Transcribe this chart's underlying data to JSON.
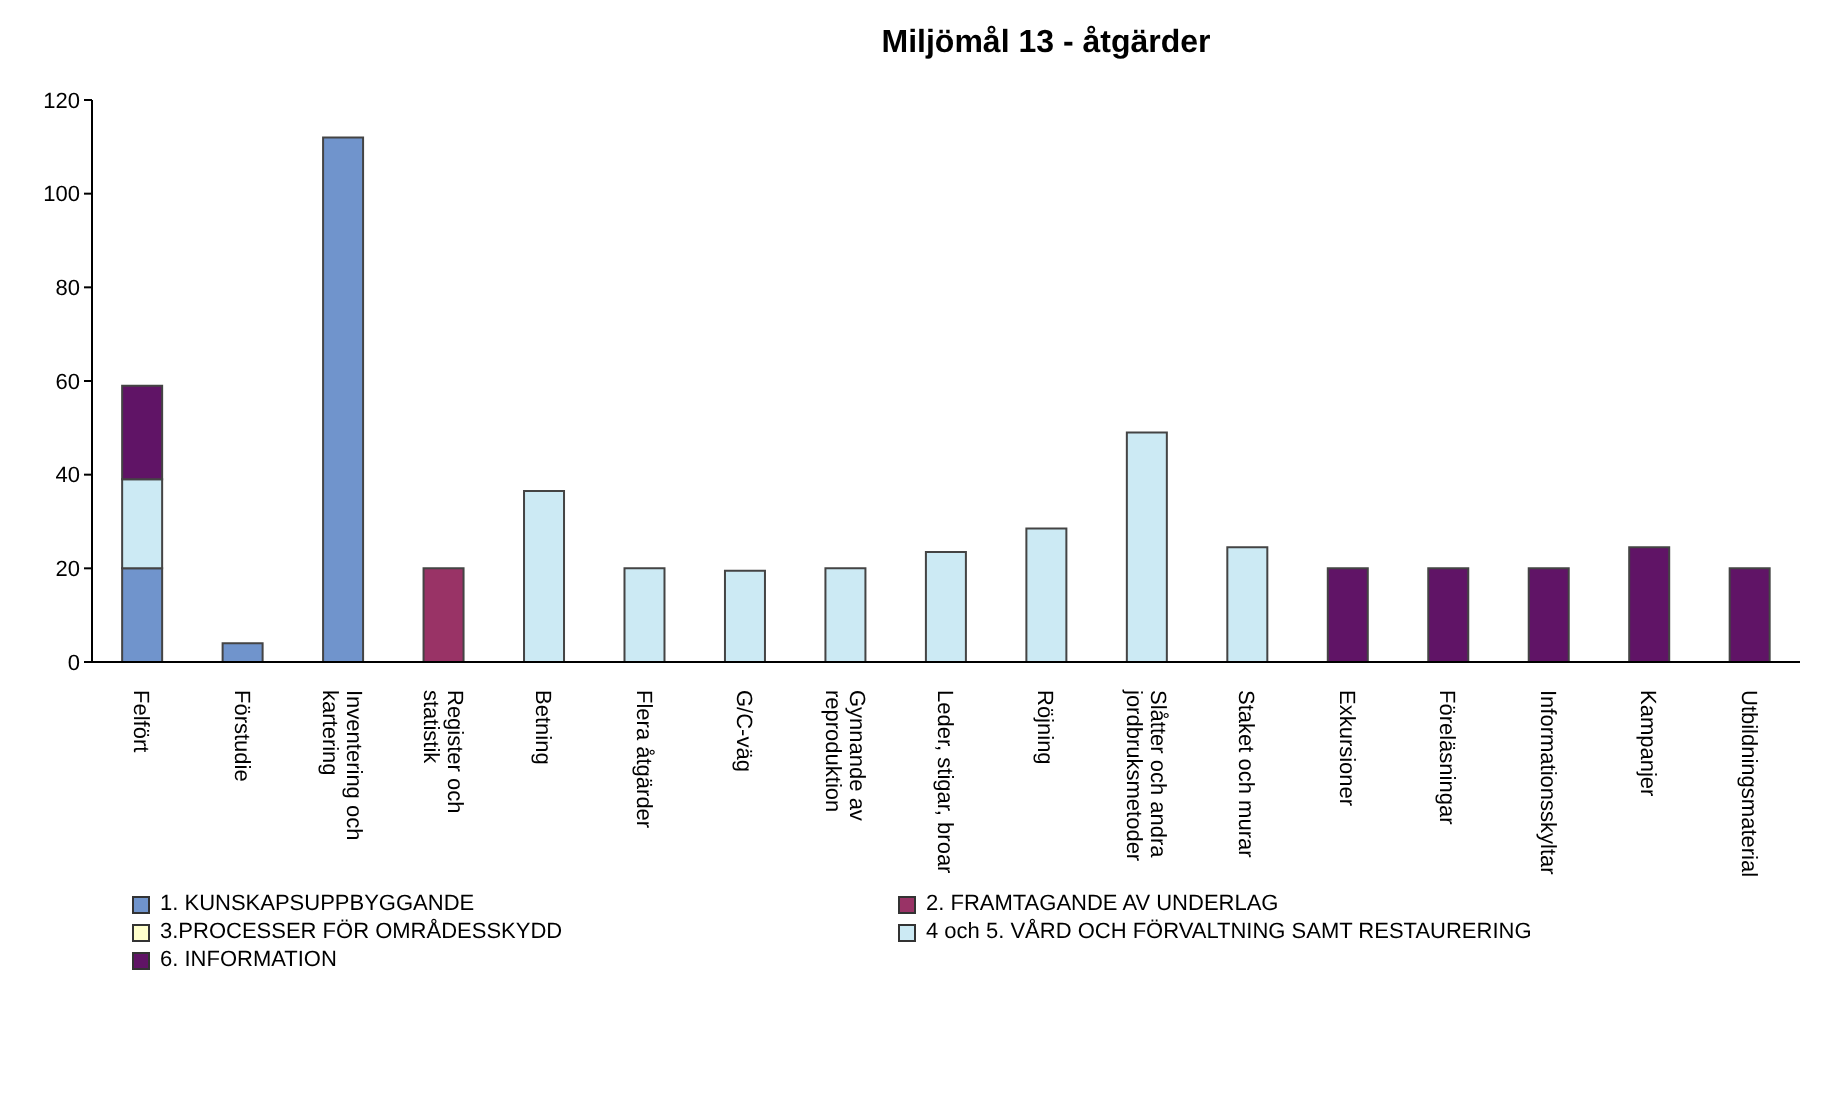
{
  "chart_data": {
    "type": "bar",
    "title": "Miljömål 13 -  åtgärder",
    "stacked": true,
    "categories": [
      "Felfört",
      "Förstudie",
      "Inventering och kartering",
      "Register och statistik",
      "Betning",
      "Flera åtgärder",
      "G/C-väg",
      "Gynnande av reproduktion",
      "Leder, stigar, broar",
      "Röjning",
      "Slåtter och andra jordbruksmetoder",
      "Staket och murar",
      "Exkursioner",
      "Föreläsningar",
      "Informationsskyltar",
      "Kampanjer",
      "Utbildningsmaterial"
    ],
    "series": [
      {
        "name": "1. KUNSKAPSUPPBYGGANDE",
        "color": "#7094cc",
        "values": [
          20,
          4,
          112,
          null,
          null,
          null,
          null,
          null,
          null,
          null,
          null,
          null,
          null,
          null,
          null,
          null,
          null
        ]
      },
      {
        "name": "2. FRAMTAGANDE AV UNDERLAG",
        "color": "#993366",
        "values": [
          null,
          null,
          null,
          20,
          null,
          null,
          null,
          null,
          null,
          null,
          null,
          null,
          null,
          null,
          null,
          null,
          null
        ]
      },
      {
        "name": "3.PROCESSER FÖR OMRÅDESSKYDD",
        "color": "#ffffcc",
        "values": [
          null,
          null,
          null,
          null,
          null,
          null,
          null,
          null,
          null,
          null,
          null,
          null,
          null,
          null,
          null,
          null,
          null
        ]
      },
      {
        "name": "4 och 5. VÅRD OCH FÖRVALTNING SAMT RESTAURERING",
        "color": "#cceaf4",
        "values": [
          19,
          null,
          null,
          null,
          36.5,
          20,
          19.5,
          20,
          23.5,
          28.5,
          49,
          24.5,
          null,
          null,
          null,
          null,
          null
        ]
      },
      {
        "name": "6. INFORMATION",
        "color": "#601466",
        "values": [
          20,
          null,
          null,
          null,
          null,
          null,
          null,
          null,
          null,
          null,
          null,
          null,
          20,
          20,
          20,
          24.5,
          20
        ]
      }
    ],
    "ylim": [
      0,
      120
    ],
    "yticks": [
      0,
      20,
      40,
      60,
      80,
      100,
      120
    ],
    "grid": false,
    "legend": "bottom"
  }
}
